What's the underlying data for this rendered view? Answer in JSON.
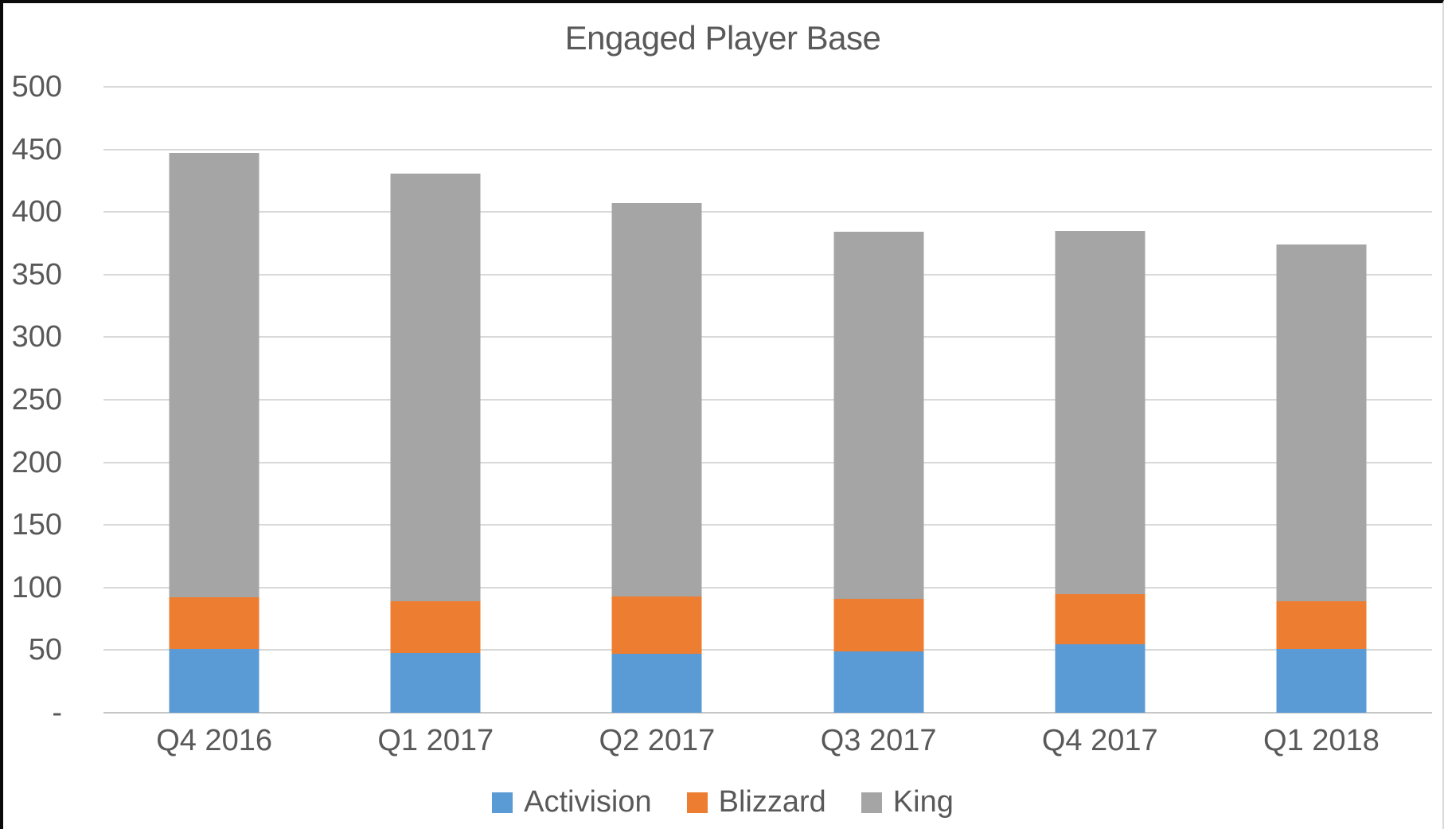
{
  "frame": {
    "background": "#ffffff",
    "border_top_left_color": "#0b0b0b",
    "border_right_color": "#d9d9d9"
  },
  "chart_data": {
    "type": "bar",
    "stacked": true,
    "title": "Engaged Player Base",
    "categories": [
      "Q4 2016",
      "Q1 2017",
      "Q2 2017",
      "Q3 2017",
      "Q4 2017",
      "Q1 2018"
    ],
    "series": [
      {
        "name": "Activision",
        "color": "#5B9BD5",
        "values": [
          51,
          48,
          47,
          49,
          55,
          51
        ]
      },
      {
        "name": "Blizzard",
        "color": "#ED7D31",
        "values": [
          41,
          41,
          46,
          42,
          40,
          38
        ]
      },
      {
        "name": "King",
        "color": "#A5A5A5",
        "values": [
          355,
          342,
          314,
          293,
          290,
          285
        ]
      }
    ],
    "stacked_totals": [
      447,
      431,
      407,
      384,
      385,
      374
    ],
    "xlabel": "",
    "ylabel": "",
    "ylim": [
      0,
      500
    ],
    "ytick_interval": 50,
    "ytick_labels": [
      "-",
      "50",
      "100",
      "150",
      "200",
      "250",
      "300",
      "350",
      "400",
      "450",
      "500"
    ],
    "grid": true,
    "legend_position": "bottom",
    "colors": {
      "gridline": "#d9d9d9",
      "axis_line": "#c6c6c6",
      "text": "#595959"
    }
  }
}
